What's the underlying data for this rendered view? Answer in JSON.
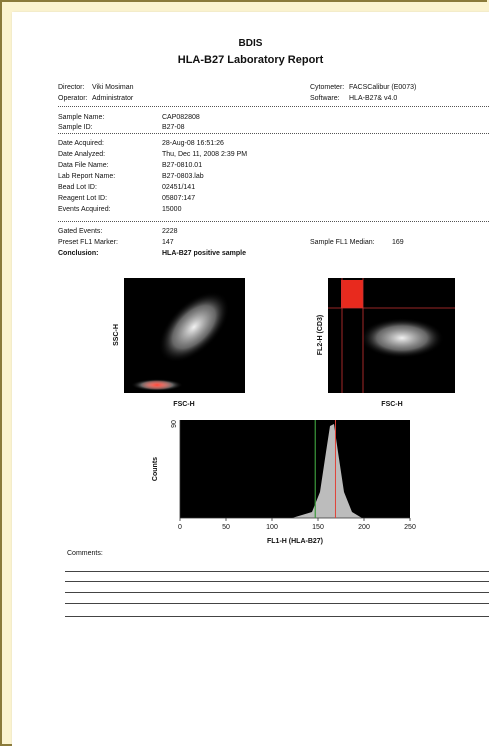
{
  "header": {
    "org": "BDIS",
    "title": "HLA-B27 Laboratory Report"
  },
  "staff": [
    {
      "label": "Director:",
      "value": "Viki Mosiman"
    },
    {
      "label": "Operator:",
      "value": "Administrator"
    }
  ],
  "instrument": [
    {
      "label": "Cytometer:",
      "value": "FACSCalibur (E0073)"
    },
    {
      "label": "Software:",
      "value": "HLA-B27& v4.0"
    }
  ],
  "sample": [
    {
      "label": "Sample Name:",
      "value": "CAP082808"
    },
    {
      "label": "Sample ID:",
      "value": "B27-08"
    }
  ],
  "acquisition": [
    {
      "label": "Date Acquired:",
      "value": "28-Aug-08 16:51:26"
    },
    {
      "label": "Date Analyzed:",
      "value": "Thu, Dec 11, 2008 2:39 PM"
    },
    {
      "label": "Data File Name:",
      "value": "B27-0810.01"
    },
    {
      "label": "Lab Report Name:",
      "value": "B27-0803.lab"
    },
    {
      "label": "Bead Lot ID:",
      "value": "02451/141"
    },
    {
      "label": "Reagent Lot ID:",
      "value": "05807:147"
    },
    {
      "label": "Events Acquired:",
      "value": 15000
    }
  ],
  "results": [
    {
      "label": "Gated Events:",
      "value": 2228
    },
    {
      "label": "Preset FL1 Marker:",
      "value": 147
    },
    {
      "label": "Conclusion:",
      "value": "HLA-B27 positive sample"
    }
  ],
  "median": {
    "label": "Sample FL1 Median:",
    "value": 169
  },
  "plots": {
    "scatter1": {
      "ylabel": "SSC-H",
      "xlabel": "FSC-H"
    },
    "scatter2": {
      "ylabel": "FL2-H (CD3)",
      "xlabel": "FSC-H"
    },
    "histogram": {
      "ylabel": "Counts",
      "xlabel": "FL1-H (HLA-B27)",
      "xlim": [
        0,
        250
      ],
      "xticks": [
        0,
        50,
        100,
        150,
        200,
        250
      ],
      "ymax_label": "90"
    }
  },
  "comments": {
    "label": "Comments:"
  }
}
